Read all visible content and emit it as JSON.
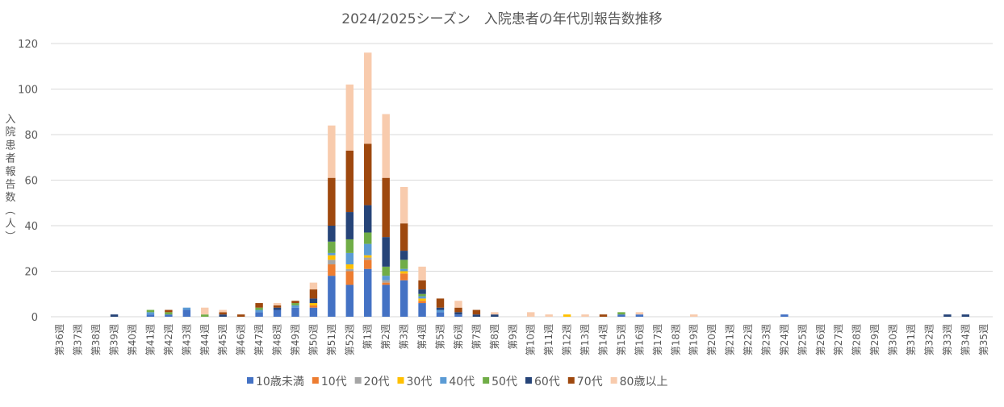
{
  "chart_data": {
    "type": "bar",
    "stacked": true,
    "title": "2024/2025シーズン　入院患者の年代別報告数推移",
    "ylabel": "入院患者報告数（人）",
    "xlabel": "",
    "ylim": [
      0,
      120
    ],
    "yticks": [
      0,
      20,
      40,
      60,
      80,
      100,
      120
    ],
    "grid": true,
    "legend_position": "bottom",
    "categories": [
      "第36週",
      "第37週",
      "第38週",
      "第39週",
      "第40週",
      "第41週",
      "第42週",
      "第43週",
      "第44週",
      "第45週",
      "第46週",
      "第47週",
      "第48週",
      "第49週",
      "第50週",
      "第51週",
      "第52週",
      "第1週",
      "第2週",
      "第3週",
      "第4週",
      "第5週",
      "第6週",
      "第7週",
      "第8週",
      "第9週",
      "第10週",
      "第11週",
      "第12週",
      "第13週",
      "第14週",
      "第15週",
      "第16週",
      "第17週",
      "第18週",
      "第19週",
      "第20週",
      "第21週",
      "第22週",
      "第23週",
      "第24週",
      "第25週",
      "第26週",
      "第27週",
      "第28週",
      "第29週",
      "第30週",
      "第31週",
      "第32週",
      "第33週",
      "第34週",
      "第35週"
    ],
    "series": [
      {
        "name": "10歳未満",
        "color": "#4472c4",
        "values": [
          0,
          0,
          0,
          0,
          0,
          1,
          1,
          3,
          0,
          0,
          0,
          2,
          3,
          4,
          4,
          18,
          14,
          21,
          14,
          16,
          6,
          2,
          1,
          0,
          0,
          0,
          0,
          0,
          0,
          0,
          0,
          1,
          1,
          0,
          0,
          0,
          0,
          0,
          0,
          0,
          1,
          0,
          0,
          0,
          0,
          0,
          0,
          0,
          0,
          0,
          0,
          0
        ]
      },
      {
        "name": "10代",
        "color": "#ed7d31",
        "values": [
          0,
          0,
          0,
          0,
          0,
          0,
          0,
          0,
          0,
          0,
          0,
          0,
          0,
          0,
          1,
          5,
          6,
          4,
          1,
          3,
          1,
          0,
          0,
          0,
          0,
          0,
          0,
          0,
          0,
          0,
          0,
          0,
          0,
          0,
          0,
          0,
          0,
          0,
          0,
          0,
          0,
          0,
          0,
          0,
          0,
          0,
          0,
          0,
          0,
          0,
          0,
          0
        ]
      },
      {
        "name": "20代",
        "color": "#a5a5a5",
        "values": [
          0,
          0,
          0,
          0,
          0,
          0,
          0,
          0,
          0,
          0,
          0,
          0,
          0,
          0,
          0,
          2,
          1,
          1,
          1,
          0,
          0,
          0,
          0,
          0,
          0,
          0,
          0,
          0,
          0,
          0,
          0,
          0,
          0,
          0,
          0,
          0,
          0,
          0,
          0,
          0,
          0,
          0,
          0,
          0,
          0,
          0,
          0,
          0,
          0,
          0,
          0,
          0
        ]
      },
      {
        "name": "30代",
        "color": "#ffc000",
        "values": [
          0,
          0,
          0,
          0,
          0,
          0,
          0,
          0,
          0,
          0,
          0,
          0,
          0,
          0,
          1,
          2,
          2,
          1,
          0,
          1,
          1,
          0,
          0,
          0,
          0,
          0,
          0,
          0,
          1,
          0,
          0,
          0,
          0,
          0,
          0,
          0,
          0,
          0,
          0,
          0,
          0,
          0,
          0,
          0,
          0,
          0,
          0,
          0,
          0,
          0,
          0,
          0
        ]
      },
      {
        "name": "40代",
        "color": "#5b9bd5",
        "values": [
          0,
          0,
          0,
          0,
          0,
          1,
          0,
          1,
          0,
          0,
          0,
          1,
          0,
          1,
          0,
          1,
          5,
          5,
          2,
          1,
          1,
          1,
          0,
          0,
          0,
          0,
          0,
          0,
          0,
          0,
          0,
          0,
          0,
          0,
          0,
          0,
          0,
          0,
          0,
          0,
          0,
          0,
          0,
          0,
          0,
          0,
          0,
          0,
          0,
          0,
          0,
          0
        ]
      },
      {
        "name": "50代",
        "color": "#70ad47",
        "values": [
          0,
          0,
          0,
          0,
          0,
          1,
          1,
          0,
          1,
          0,
          0,
          1,
          0,
          1,
          0,
          5,
          6,
          5,
          4,
          4,
          1,
          0,
          0,
          0,
          0,
          0,
          0,
          0,
          0,
          0,
          0,
          1,
          0,
          0,
          0,
          0,
          0,
          0,
          0,
          0,
          0,
          0,
          0,
          0,
          0,
          0,
          0,
          0,
          0,
          0,
          0,
          0
        ]
      },
      {
        "name": "60代",
        "color": "#264478",
        "values": [
          0,
          0,
          0,
          1,
          0,
          0,
          0,
          0,
          0,
          1,
          0,
          0,
          1,
          0,
          2,
          7,
          12,
          12,
          13,
          4,
          2,
          1,
          1,
          1,
          1,
          0,
          0,
          0,
          0,
          0,
          0,
          0,
          0,
          0,
          0,
          0,
          0,
          0,
          0,
          0,
          0,
          0,
          0,
          0,
          0,
          0,
          0,
          0,
          0,
          1,
          1,
          0
        ]
      },
      {
        "name": "70代",
        "color": "#9e480e",
        "values": [
          0,
          0,
          0,
          0,
          0,
          0,
          1,
          0,
          0,
          1,
          1,
          2,
          1,
          1,
          4,
          21,
          27,
          27,
          26,
          12,
          4,
          4,
          2,
          2,
          0,
          0,
          0,
          0,
          0,
          0,
          1,
          0,
          0,
          0,
          0,
          0,
          0,
          0,
          0,
          0,
          0,
          0,
          0,
          0,
          0,
          0,
          0,
          0,
          0,
          0,
          0,
          0
        ]
      },
      {
        "name": "80歳以上",
        "color": "#f8cbad",
        "values": [
          0,
          0,
          0,
          0,
          0,
          0,
          0,
          0,
          3,
          1,
          0,
          0,
          1,
          0,
          3,
          23,
          29,
          40,
          28,
          16,
          6,
          0,
          3,
          0,
          1,
          0,
          2,
          1,
          0,
          1,
          0,
          0,
          1,
          0,
          0,
          1,
          0,
          0,
          0,
          0,
          0,
          0,
          0,
          0,
          0,
          0,
          0,
          0,
          0,
          0,
          0,
          0
        ]
      }
    ]
  }
}
